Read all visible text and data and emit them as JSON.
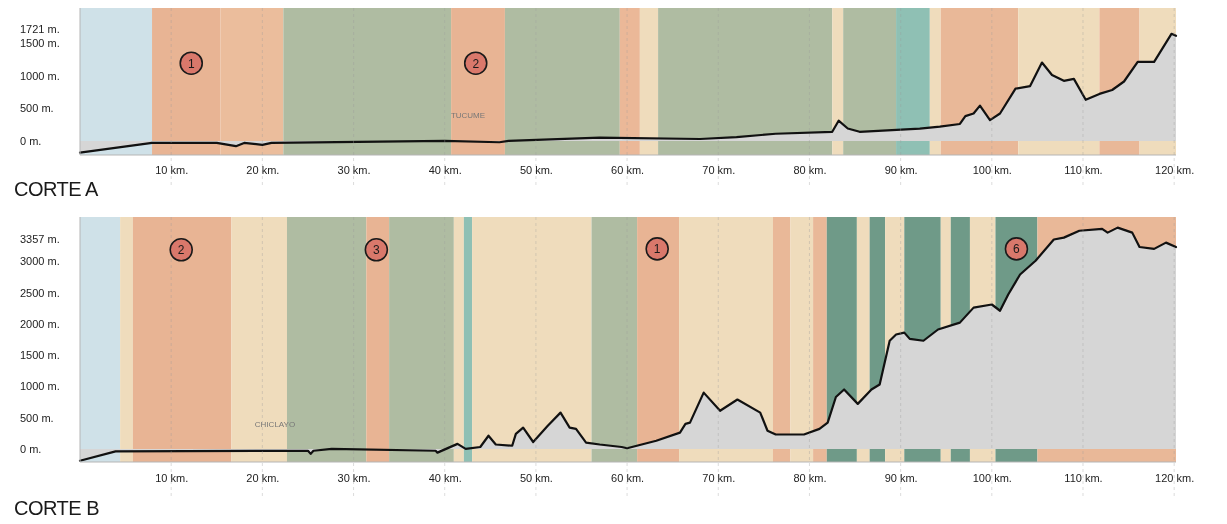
{
  "chart_data": [
    {
      "type": "area",
      "title": "CORTE A",
      "series": [
        {
          "color": "#d6d6d6",
          "x": [
            0,
            7.9,
            15,
            17.1,
            18,
            20,
            21,
            40,
            46,
            47,
            57,
            68,
            72,
            76.3,
            82.5,
            83.2,
            84.2,
            85.5,
            92.1,
            94.3,
            96.5,
            97.1,
            98,
            98.7,
            99.8,
            100.9,
            102.6,
            104.2,
            105.5,
            106.6,
            107.9,
            109,
            110.3,
            111.8,
            113.2,
            114.5,
            116,
            117.8,
            119.7,
            120.2
          ],
          "values": [
            -180,
            -30,
            -30,
            -80,
            -30,
            -60,
            -30,
            0,
            -20,
            0,
            50,
            30,
            60,
            110,
            140,
            310,
            190,
            140,
            190,
            220,
            260,
            380,
            420,
            540,
            320,
            420,
            800,
            840,
            1200,
            1010,
            920,
            950,
            630,
            720,
            780,
            910,
            1210,
            1210,
            1640,
            1610
          ]
        }
      ],
      "xlim": [
        0,
        120.2
      ],
      "xticks": [
        {
          "value": 10,
          "label": "10 km."
        },
        {
          "value": 20,
          "label": "20 km."
        },
        {
          "value": 30,
          "label": "30 km."
        },
        {
          "value": 40,
          "label": "40 km."
        },
        {
          "value": 50,
          "label": "50 km."
        },
        {
          "value": 60,
          "label": "60 km."
        },
        {
          "value": 70,
          "label": "70 km."
        },
        {
          "value": 80,
          "label": "80 km."
        },
        {
          "value": 90,
          "label": "90 km."
        },
        {
          "value": 100,
          "label": "100 km."
        },
        {
          "value": 110,
          "label": "110 km."
        },
        {
          "value": 120,
          "label": "120 km."
        }
      ],
      "ylim": [
        -215,
        2035
      ],
      "yticks": [
        {
          "value": 0,
          "label": "0 m."
        },
        {
          "value": 500,
          "label": "500 m."
        },
        {
          "value": 1000,
          "label": "1000 m."
        },
        {
          "value": 1500,
          "label": "1500 m."
        },
        {
          "value": 1721,
          "label": "1721 m."
        }
      ],
      "grid": "x",
      "bands": [
        {
          "axis": "x",
          "from": 0,
          "to": 7.9,
          "color": "#cfe1e8"
        },
        {
          "axis": "x",
          "from": 7.9,
          "to": 15.4,
          "color": "#e8b494"
        },
        {
          "axis": "x",
          "from": 15.4,
          "to": 22.3,
          "color": "#ebbd9c"
        },
        {
          "axis": "x",
          "from": 22.3,
          "to": 40.7,
          "color": "#afbca2"
        },
        {
          "axis": "x",
          "from": 40.7,
          "to": 46.6,
          "color": "#e8b494"
        },
        {
          "axis": "x",
          "from": 46.6,
          "to": 59.2,
          "color": "#afbca2"
        },
        {
          "axis": "x",
          "from": 59.2,
          "to": 61.4,
          "color": "#ebb898"
        },
        {
          "axis": "x",
          "from": 61.4,
          "to": 63.4,
          "color": "#efdcbc"
        },
        {
          "axis": "x",
          "from": 63.4,
          "to": 82.5,
          "color": "#afbca2"
        },
        {
          "axis": "x",
          "from": 82.5,
          "to": 83.7,
          "color": "#efdcbc"
        },
        {
          "axis": "x",
          "from": 83.7,
          "to": 89.5,
          "color": "#afbca2"
        },
        {
          "axis": "x",
          "from": 89.5,
          "to": 93.2,
          "color": "#8fc0b4"
        },
        {
          "axis": "x",
          "from": 93.2,
          "to": 94.4,
          "color": "#efdcbc"
        },
        {
          "axis": "x",
          "from": 94.4,
          "to": 102.9,
          "color": "#e9b898"
        },
        {
          "axis": "x",
          "from": 102.9,
          "to": 111.8,
          "color": "#efdcbc"
        },
        {
          "axis": "x",
          "from": 111.8,
          "to": 116.2,
          "color": "#e9b898"
        },
        {
          "axis": "x",
          "from": 116.2,
          "to": 120.2,
          "color": "#efdcbc"
        }
      ],
      "annotations": [
        {
          "text": "1",
          "x": 12.2,
          "y": 1190
        },
        {
          "text": "2",
          "x": 43.4,
          "y": 1190
        },
        "TUCUME"
      ]
    },
    {
      "type": "area",
      "title": "CORTE B",
      "series": [
        {
          "color": "#d6d6d6",
          "x": [
            0,
            3.9,
            25,
            25.3,
            25.6,
            27.6,
            39,
            39.2,
            41.4,
            42.3,
            43.9,
            44.8,
            45.6,
            47.4,
            47.8,
            48.6,
            49.7,
            51.3,
            52.7,
            53.7,
            54.4,
            55.5,
            57,
            59.4,
            60,
            63.2,
            65.8,
            66.4,
            66.9,
            68.4,
            70.2,
            72.1,
            74.6,
            75.4,
            76.3,
            79.4,
            81.1,
            82,
            82.9,
            83.8,
            85.3,
            86.8,
            87.7,
            88.8,
            89.5,
            90.4,
            91,
            92.5,
            94.1,
            96.5,
            98,
            100,
            100.9,
            101.8,
            103.1,
            104.8,
            106.8,
            107.9,
            109.6,
            112.1,
            112.7,
            113.8,
            115.4,
            116.2,
            117.8,
            119.1,
            120.2
          ],
          "values": [
            -190,
            -40,
            -30,
            -80,
            -30,
            0,
            -30,
            -60,
            80,
            0,
            30,
            210,
            70,
            50,
            240,
            340,
            110,
            370,
            580,
            340,
            320,
            100,
            70,
            30,
            10,
            130,
            260,
            400,
            420,
            900,
            610,
            790,
            580,
            290,
            230,
            230,
            320,
            420,
            830,
            950,
            720,
            950,
            1030,
            1730,
            1830,
            1860,
            1760,
            1730,
            1910,
            2020,
            2260,
            2310,
            2210,
            2470,
            2790,
            3010,
            3350,
            3380,
            3490,
            3520,
            3460,
            3540,
            3460,
            3230,
            3200,
            3300,
            3230
          ]
        }
      ],
      "xlim": [
        0,
        120.2
      ],
      "xticks": [
        {
          "value": 10,
          "label": "10 km."
        },
        {
          "value": 20,
          "label": "20 km."
        },
        {
          "value": 30,
          "label": "30 km."
        },
        {
          "value": 40,
          "label": "40 km."
        },
        {
          "value": 50,
          "label": "50 km."
        },
        {
          "value": 60,
          "label": "60 km."
        },
        {
          "value": 70,
          "label": "70 km."
        },
        {
          "value": 80,
          "label": "80 km."
        },
        {
          "value": 90,
          "label": "90 km."
        },
        {
          "value": 100,
          "label": "100 km."
        },
        {
          "value": 110,
          "label": "110 km."
        },
        {
          "value": 120,
          "label": "120 km."
        }
      ],
      "ylim": [
        -210,
        3710
      ],
      "yticks": [
        {
          "value": 0,
          "label": "0 m."
        },
        {
          "value": 500,
          "label": "500 m."
        },
        {
          "value": 1000,
          "label": "1000 m."
        },
        {
          "value": 1500,
          "label": "1500 m."
        },
        {
          "value": 2000,
          "label": "2000 m."
        },
        {
          "value": 2500,
          "label": "2500 m."
        },
        {
          "value": 3000,
          "label": "3000 m."
        },
        {
          "value": 3357,
          "label": "3357 m."
        }
      ],
      "grid": "x",
      "bands": [
        {
          "axis": "x",
          "from": 0,
          "to": 4.4,
          "color": "#cfe1e8"
        },
        {
          "axis": "x",
          "from": 4.4,
          "to": 5.8,
          "color": "#efdcbc"
        },
        {
          "axis": "x",
          "from": 5.8,
          "to": 16.6,
          "color": "#e8b494"
        },
        {
          "axis": "x",
          "from": 16.6,
          "to": 22.7,
          "color": "#efdcbc"
        },
        {
          "axis": "x",
          "from": 22.7,
          "to": 31.4,
          "color": "#afbca2"
        },
        {
          "axis": "x",
          "from": 31.4,
          "to": 33.9,
          "color": "#e8b494"
        },
        {
          "axis": "x",
          "from": 33.9,
          "to": 41,
          "color": "#afbca2"
        },
        {
          "axis": "x",
          "from": 41,
          "to": 42.1,
          "color": "#efdcbc"
        },
        {
          "axis": "x",
          "from": 42.1,
          "to": 43,
          "color": "#8fc0b4"
        },
        {
          "axis": "x",
          "from": 43,
          "to": 56.1,
          "color": "#efdcbc"
        },
        {
          "axis": "x",
          "from": 56.1,
          "to": 61.1,
          "color": "#afbca2"
        },
        {
          "axis": "x",
          "from": 61.1,
          "to": 65.7,
          "color": "#e8b494"
        },
        {
          "axis": "x",
          "from": 65.7,
          "to": 76,
          "color": "#efdcbc"
        },
        {
          "axis": "x",
          "from": 76,
          "to": 77.9,
          "color": "#e9b898"
        },
        {
          "axis": "x",
          "from": 77.9,
          "to": 80.4,
          "color": "#efdcbc"
        },
        {
          "axis": "x",
          "from": 80.4,
          "to": 81.9,
          "color": "#e9b898"
        },
        {
          "axis": "x",
          "from": 81.9,
          "to": 85.2,
          "color": "#6f9a88"
        },
        {
          "axis": "x",
          "from": 85.2,
          "to": 86.6,
          "color": "#efdcbc"
        },
        {
          "axis": "x",
          "from": 86.6,
          "to": 88.3,
          "color": "#6f9a88"
        },
        {
          "axis": "x",
          "from": 88.3,
          "to": 90.4,
          "color": "#efdcbc"
        },
        {
          "axis": "x",
          "from": 90.4,
          "to": 94.4,
          "color": "#6f9a88"
        },
        {
          "axis": "x",
          "from": 94.4,
          "to": 95.5,
          "color": "#efdcbc"
        },
        {
          "axis": "x",
          "from": 95.5,
          "to": 97.6,
          "color": "#6f9a88"
        },
        {
          "axis": "x",
          "from": 97.6,
          "to": 100.4,
          "color": "#efdcbc"
        },
        {
          "axis": "x",
          "from": 100.4,
          "to": 105,
          "color": "#6f9a88"
        },
        {
          "axis": "x",
          "from": 105,
          "to": 120.2,
          "color": "#e9b898"
        }
      ],
      "annotations": [
        {
          "text": "2",
          "x": 11.1,
          "y": 3185
        },
        {
          "text": "3",
          "x": 32.5,
          "y": 3185
        },
        {
          "text": "1",
          "x": 63.3,
          "y": 3200
        },
        {
          "text": "6",
          "x": 102.7,
          "y": 3200
        },
        "CHICLAYO"
      ]
    }
  ]
}
